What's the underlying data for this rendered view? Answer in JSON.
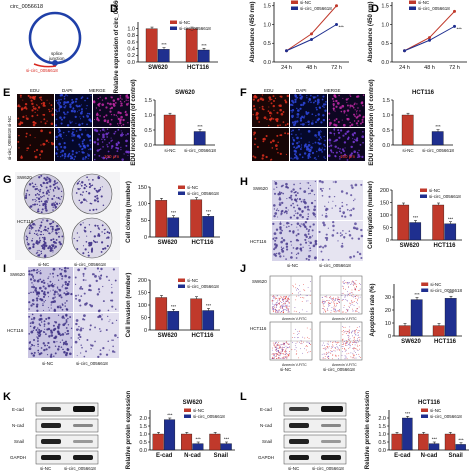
{
  "panel_letters": {
    "D": "D",
    "E": "E",
    "F": "F",
    "G": "G",
    "H": "H",
    "I": "I",
    "J": "J",
    "K": "K",
    "L": "L"
  },
  "circ_label": "circ_0056618",
  "splice_label_1": "splice",
  "splice_label_2": "junction",
  "si_label": "si-circ_0056618",
  "colors": {
    "nc": "#c0392b",
    "si": "#1f2f8f",
    "edu_red": "#d8281f",
    "dapi_blue": "#1c2fb8",
    "stain": "#4b3d8f"
  },
  "img_labels": {
    "edu": "EDU",
    "dapi": "DAPI",
    "merge": "MERGE",
    "si_nc": "si-NC",
    "si_circ": "si-circ_0056618",
    "sw620": "SW620",
    "hct116": "HCT116",
    "scale": "100 μm",
    "scale_j": "100 μm",
    "annexin": "Annexin V-FITC",
    "side_nc": "si-NC",
    "side_si": "si-circ_0056618",
    "ecad": "E-cad",
    "ncad": "N-cad",
    "snail": "Snail",
    "gapdh": "GAPDH"
  },
  "chart_data": [
    {
      "id": "C1",
      "type": "bar",
      "title": "",
      "ylabel": "Relative expression of circ_0056618",
      "ylim": [
        0,
        1.2
      ],
      "yticks": [
        0.0,
        0.2,
        0.4,
        0.6,
        0.8,
        1.0
      ],
      "tick_labels": [
        "0.0",
        "0.2",
        "0.4",
        "0.6",
        "0.8",
        "1.0"
      ],
      "categories": [
        "SW620",
        "HCT116"
      ],
      "legend": [
        "si-NC",
        "si-circ_0056618"
      ],
      "series": [
        {
          "name": "si-NC",
          "values": [
            1.0,
            1.0
          ]
        },
        {
          "name": "si-circ_0056618",
          "values": [
            0.38,
            0.36
          ]
        }
      ],
      "annotations": [
        "***",
        "***"
      ]
    },
    {
      "id": "C2",
      "type": "line",
      "title": "",
      "ylabel": "Absorbance (450 nm)",
      "ylim": [
        0,
        1.6
      ],
      "yticks": [
        0.0,
        0.5,
        1.0,
        1.5
      ],
      "tick_labels": [
        "0.0",
        "0.5",
        "1.0",
        "1.5"
      ],
      "x": [
        "24 h",
        "48 h",
        "72 h"
      ],
      "legend": [
        "si-NC",
        "si-circ_0056618"
      ],
      "series": [
        {
          "name": "si-NC",
          "values": [
            0.3,
            0.75,
            1.5
          ]
        },
        {
          "name": "si-circ_0056618",
          "values": [
            0.3,
            0.6,
            1.0
          ]
        }
      ],
      "annotations": [
        "***"
      ]
    },
    {
      "id": "C3",
      "type": "line",
      "title": "",
      "ylabel": "Absorbance (450 nm)",
      "ylim": [
        0,
        1.6
      ],
      "yticks": [
        0.0,
        0.5,
        1.0,
        1.5
      ],
      "tick_labels": [
        "0.0",
        "0.5",
        "1.0",
        "1.5"
      ],
      "x": [
        "24 h",
        "48 h",
        "72 h"
      ],
      "legend": [
        "si-NC",
        "si-circ_0056618"
      ],
      "series": [
        {
          "name": "si-NC",
          "values": [
            0.3,
            0.65,
            1.35
          ]
        },
        {
          "name": "si-circ_0056618",
          "values": [
            0.3,
            0.58,
            0.95
          ]
        }
      ],
      "annotations": [
        "***"
      ]
    },
    {
      "id": "E",
      "type": "bar",
      "title": "SW620",
      "ylabel": "EDU incorporation (of control)",
      "ylim": [
        0,
        1.5
      ],
      "yticks": [
        0.0,
        0.5,
        1.0,
        1.5
      ],
      "tick_labels": [
        "0.0",
        "0.5",
        "1.0",
        "1.5"
      ],
      "categories": [
        "si-NC",
        "si-circ_0056618"
      ],
      "series": [
        {
          "name": "",
          "values": [
            1.0,
            0.45
          ]
        }
      ],
      "annotations": [
        "***"
      ]
    },
    {
      "id": "F",
      "type": "bar",
      "title": "HCT116",
      "ylabel": "EDU incorporation (of control)",
      "ylim": [
        0,
        1.5
      ],
      "yticks": [
        0.0,
        0.5,
        1.0,
        1.5
      ],
      "tick_labels": [
        "0.0",
        "0.5",
        "1.0",
        "1.5"
      ],
      "categories": [
        "si-NC",
        "si-circ_0056618"
      ],
      "series": [
        {
          "name": "",
          "values": [
            1.0,
            0.45
          ]
        }
      ],
      "annotations": [
        "***"
      ]
    },
    {
      "id": "G",
      "type": "bar",
      "title": "",
      "ylabel": "Cell cloning (number)",
      "ylim": [
        0,
        150
      ],
      "yticks": [
        0,
        50,
        100,
        150
      ],
      "tick_labels": [
        "0",
        "50",
        "100",
        "150"
      ],
      "categories": [
        "SW620",
        "HCT116"
      ],
      "legend": [
        "si-NC",
        "si-circ_0056618"
      ],
      "series": [
        {
          "name": "si-NC",
          "values": [
            110,
            112
          ]
        },
        {
          "name": "si-circ_0056618",
          "values": [
            58,
            62
          ]
        }
      ],
      "annotations": [
        "***",
        "***"
      ]
    },
    {
      "id": "H",
      "type": "bar",
      "title": "",
      "ylabel": "Cell migration (number)",
      "ylim": [
        0,
        200
      ],
      "yticks": [
        0,
        50,
        100,
        150,
        200
      ],
      "tick_labels": [
        "0",
        "50",
        "100",
        "150",
        "200"
      ],
      "categories": [
        "SW620",
        "HCT116"
      ],
      "legend": [
        "si-NC",
        "si-circ_0056618"
      ],
      "series": [
        {
          "name": "si-NC",
          "values": [
            140,
            140
          ]
        },
        {
          "name": "si-circ_0056618",
          "values": [
            70,
            65
          ]
        }
      ],
      "annotations": [
        "***",
        "***"
      ]
    },
    {
      "id": "I",
      "type": "bar",
      "title": "",
      "ylabel": "Cell invasion (number)",
      "ylim": [
        0,
        200
      ],
      "yticks": [
        0,
        50,
        100,
        150,
        200
      ],
      "tick_labels": [
        "0",
        "50",
        "100",
        "150",
        "200"
      ],
      "categories": [
        "SW620",
        "HCT116"
      ],
      "legend": [
        "si-NC",
        "si-circ_0056618"
      ],
      "series": [
        {
          "name": "si-NC",
          "values": [
            130,
            125
          ]
        },
        {
          "name": "si-circ_0056618",
          "values": [
            75,
            78
          ]
        }
      ],
      "annotations": [
        "***",
        "***"
      ]
    },
    {
      "id": "J",
      "type": "bar",
      "title": "",
      "ylabel": "Apoptosis rate (%)",
      "ylim": [
        0,
        40
      ],
      "yticks": [
        0,
        10,
        20,
        30
      ],
      "tick_labels": [
        "0",
        "10",
        "20",
        "30"
      ],
      "categories": [
        "SW620",
        "HCT116"
      ],
      "legend": [
        "si-NC",
        "si-circ_0056618"
      ],
      "series": [
        {
          "name": "si-NC",
          "values": [
            8,
            8
          ]
        },
        {
          "name": "si-circ_0056618",
          "values": [
            28,
            29
          ]
        }
      ],
      "annotations": [
        "***",
        "***"
      ]
    },
    {
      "id": "K",
      "type": "bar",
      "title": "SW620",
      "ylabel": "Relative protein expression",
      "ylim": [
        0,
        2.5
      ],
      "yticks": [
        0.0,
        0.5,
        1.0,
        1.5,
        2.0
      ],
      "tick_labels": [
        "0.0",
        "0.5",
        "1.0",
        "1.5",
        "2.0"
      ],
      "categories": [
        "E-cad",
        "N-cad",
        "Snail"
      ],
      "legend": [
        "si-NC",
        "si-circ_0056618"
      ],
      "series": [
        {
          "name": "si-NC",
          "values": [
            1.0,
            1.0,
            1.0
          ]
        },
        {
          "name": "si-circ_0056618",
          "values": [
            1.9,
            0.4,
            0.4
          ]
        }
      ],
      "annotations": [
        "***",
        "***",
        "***"
      ]
    },
    {
      "id": "L",
      "type": "bar",
      "title": "HCT116",
      "ylabel": "Relative protein expression",
      "ylim": [
        0,
        2.5
      ],
      "yticks": [
        0.0,
        0.5,
        1.0,
        1.5,
        2.0
      ],
      "tick_labels": [
        "0.0",
        "0.5",
        "1.0",
        "1.5",
        "2.0"
      ],
      "categories": [
        "E-cad",
        "N-cad",
        "Snail"
      ],
      "legend": [
        "si-NC",
        "si-circ_0056618"
      ],
      "series": [
        {
          "name": "si-NC",
          "values": [
            1.0,
            1.0,
            1.0
          ]
        },
        {
          "name": "si-circ_0056618",
          "values": [
            2.0,
            0.4,
            0.35
          ]
        }
      ],
      "annotations": [
        "***",
        "***",
        "***"
      ]
    }
  ]
}
